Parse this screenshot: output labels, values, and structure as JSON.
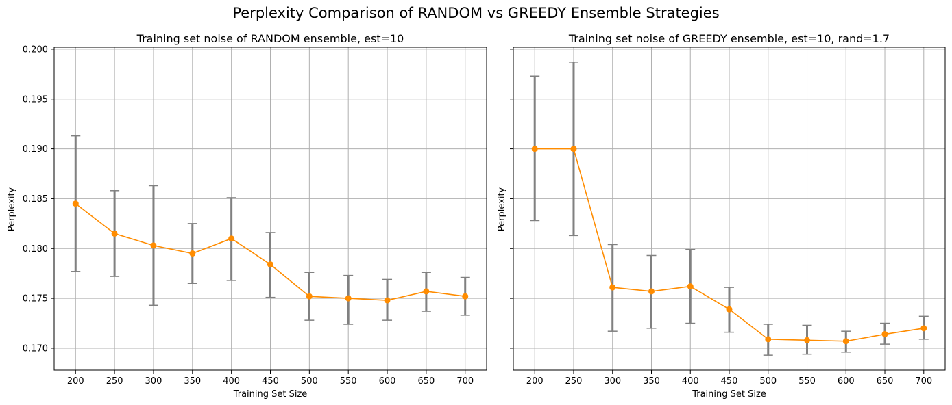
{
  "suptitle": "Perplexity Comparison of RANDOM vs GREEDY Ensemble Strategies",
  "colors": {
    "line": "#ff8c00",
    "errorbar": "#808080",
    "grid": "#b0b0b0",
    "axes": "#000000"
  },
  "chart_data": [
    {
      "type": "line",
      "title": "Training set noise of RANDOM ensemble, est=10",
      "xlabel": "Training Set Size",
      "ylabel": "Perplexity",
      "grid": true,
      "x": [
        200,
        250,
        300,
        350,
        400,
        450,
        500,
        550,
        600,
        650,
        700
      ],
      "xticks": [
        200,
        250,
        300,
        350,
        400,
        450,
        500,
        550,
        600,
        650,
        700
      ],
      "xlim": [
        172.5,
        727.5
      ],
      "ylim": [
        0.1678,
        0.2002
      ],
      "yticks": [
        0.17,
        0.175,
        0.18,
        0.185,
        0.19,
        0.195,
        0.2
      ],
      "yticklabels": [
        "0.170",
        "0.175",
        "0.180",
        "0.185",
        "0.190",
        "0.195",
        "0.200"
      ],
      "series": [
        {
          "values": [
            0.1845,
            0.1815,
            0.1803,
            0.1795,
            0.181,
            0.1784,
            0.1752,
            0.175,
            0.1748,
            0.1757,
            0.1752
          ],
          "err_low": [
            0.1777,
            0.1772,
            0.1743,
            0.1765,
            0.1768,
            0.1751,
            0.1728,
            0.1724,
            0.1728,
            0.1737,
            0.1733
          ],
          "err_high": [
            0.1913,
            0.1858,
            0.1863,
            0.1825,
            0.1851,
            0.1816,
            0.1776,
            0.1773,
            0.1769,
            0.1776,
            0.1771
          ]
        }
      ]
    },
    {
      "type": "line",
      "title": "Training set noise of GREEDY ensemble, est=10, rand=1.7",
      "xlabel": "Training Set Size",
      "ylabel": "Perplexity",
      "grid": true,
      "x": [
        200,
        250,
        300,
        350,
        400,
        450,
        500,
        550,
        600,
        650,
        700
      ],
      "xticks": [
        200,
        250,
        300,
        350,
        400,
        450,
        500,
        550,
        600,
        650,
        700
      ],
      "xlim": [
        172.5,
        727.5
      ],
      "ylim": [
        0.1678,
        0.2002
      ],
      "yticks": [
        0.17,
        0.175,
        0.18,
        0.185,
        0.19,
        0.195,
        0.2
      ],
      "yticklabels": [
        "",
        "",
        "",
        "",
        "",
        "",
        ""
      ],
      "series": [
        {
          "values": [
            0.19,
            0.19,
            0.1761,
            0.1757,
            0.1762,
            0.1739,
            0.1709,
            0.1708,
            0.1707,
            0.1714,
            0.172
          ],
          "err_low": [
            0.1828,
            0.1813,
            0.1717,
            0.172,
            0.1725,
            0.1716,
            0.1693,
            0.1694,
            0.1696,
            0.1704,
            0.1709
          ],
          "err_high": [
            0.1973,
            0.1987,
            0.1804,
            0.1793,
            0.1799,
            0.1761,
            0.1724,
            0.1723,
            0.1717,
            0.1725,
            0.1732
          ]
        }
      ]
    }
  ]
}
